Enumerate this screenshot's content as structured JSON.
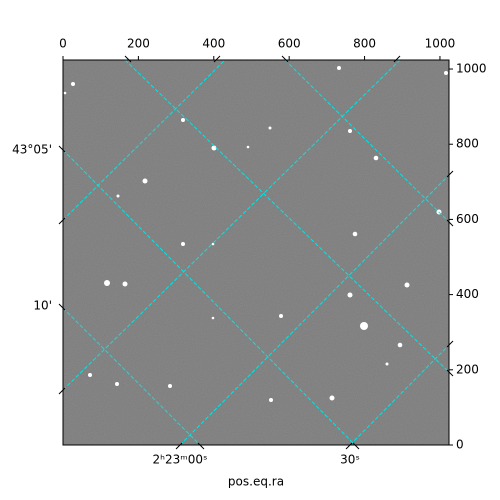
{
  "chart_data": {
    "type": "image",
    "xlim": [
      0,
      1024
    ],
    "ylim": [
      0,
      1024
    ],
    "xticks": [
      0,
      200,
      400,
      600,
      800,
      1000
    ],
    "yticks": [
      0,
      200,
      400,
      600,
      800,
      1000
    ],
    "ra_labels": [
      "2ʰ23ᵐ00ˢ",
      "30ˢ"
    ],
    "dec_labels": [
      "43°05'",
      "10'"
    ],
    "xlabel": "pos.eq.ra",
    "grid_color": "#00e5e5"
  }
}
